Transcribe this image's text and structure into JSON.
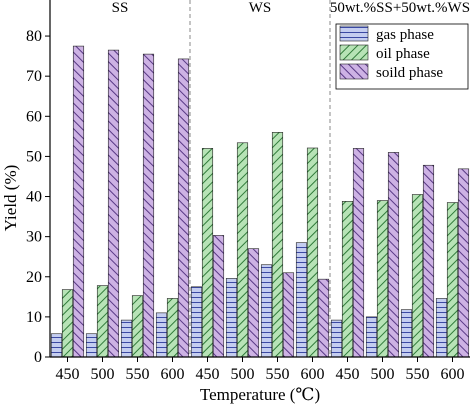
{
  "chart_data": {
    "type": "bar",
    "ylabel": "Yield (%)",
    "xlabel": "Temperature (℃)",
    "ylim": [
      0,
      85
    ],
    "yticks": [
      0,
      10,
      20,
      30,
      40,
      50,
      60,
      70,
      80
    ],
    "grid": false,
    "legend_position": "top-right",
    "groups": [
      {
        "label": "SS",
        "categories": [
          "450",
          "500",
          "550",
          "600"
        ],
        "series": [
          {
            "name": "gas phase",
            "values": [
              5.8,
              5.8,
              9.2,
              11.0
            ]
          },
          {
            "name": "oil phase",
            "values": [
              16.8,
              17.8,
              15.3,
              14.6
            ]
          },
          {
            "name": "soild phase",
            "values": [
              77.5,
              76.5,
              75.5,
              74.3
            ]
          }
        ]
      },
      {
        "label": "WS",
        "categories": [
          "450",
          "500",
          "550",
          "600"
        ],
        "series": [
          {
            "name": "gas phase",
            "values": [
              17.5,
              19.6,
              23.0,
              28.5
            ]
          },
          {
            "name": "oil phase",
            "values": [
              52.0,
              53.4,
              56.0,
              52.1
            ]
          },
          {
            "name": "soild phase",
            "values": [
              30.3,
              27.0,
              21.0,
              19.4
            ]
          }
        ]
      },
      {
        "label": "50wt.%SS+50wt.%WS",
        "categories": [
          "450",
          "500",
          "550",
          "600"
        ],
        "series": [
          {
            "name": "gas phase",
            "values": [
              9.2,
              10.0,
              11.8,
              14.6
            ]
          },
          {
            "name": "oil phase",
            "values": [
              38.8,
              39.0,
              40.5,
              38.5
            ]
          },
          {
            "name": "soild phase",
            "values": [
              52.0,
              51.0,
              47.8,
              46.9
            ]
          }
        ]
      }
    ],
    "legend": [
      "gas phase",
      "oil phase",
      "soild phase"
    ],
    "colors": {
      "gas phase": "#c4cdf0",
      "oil phase": "#b7e3b6",
      "soild phase": "#cdb2e4"
    },
    "hatch_colors": {
      "gas phase": "#2b3a9a",
      "oil phase": "#1f6e2b",
      "soild phase": "#4b2a7a"
    }
  }
}
